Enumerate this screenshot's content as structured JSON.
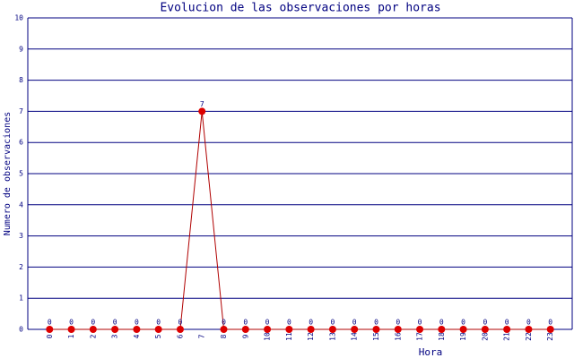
{
  "chart_data": {
    "type": "line",
    "title": "Evolucion de las observaciones por horas",
    "x_label": "Hora",
    "y_label": "Numero de observaciones",
    "categories": [
      "0",
      "1",
      "2",
      "3",
      "4",
      "5",
      "6",
      "7",
      "8",
      "9",
      "10",
      "11",
      "12",
      "13",
      "14",
      "15",
      "16",
      "17",
      "18",
      "19",
      "20",
      "21",
      "22",
      "23"
    ],
    "series": [
      {
        "name": "observaciones",
        "color": "#b00000",
        "marker_color": "#dd0000",
        "values": [
          0,
          0,
          0,
          0,
          0,
          0,
          0,
          7,
          0,
          0,
          0,
          0,
          0,
          0,
          0,
          0,
          0,
          0,
          0,
          0,
          0,
          0,
          0,
          0
        ]
      }
    ],
    "ylim": [
      0,
      10
    ],
    "yticks": [
      0,
      1,
      2,
      3,
      4,
      5,
      6,
      7,
      8,
      9,
      10
    ],
    "grid": true
  }
}
